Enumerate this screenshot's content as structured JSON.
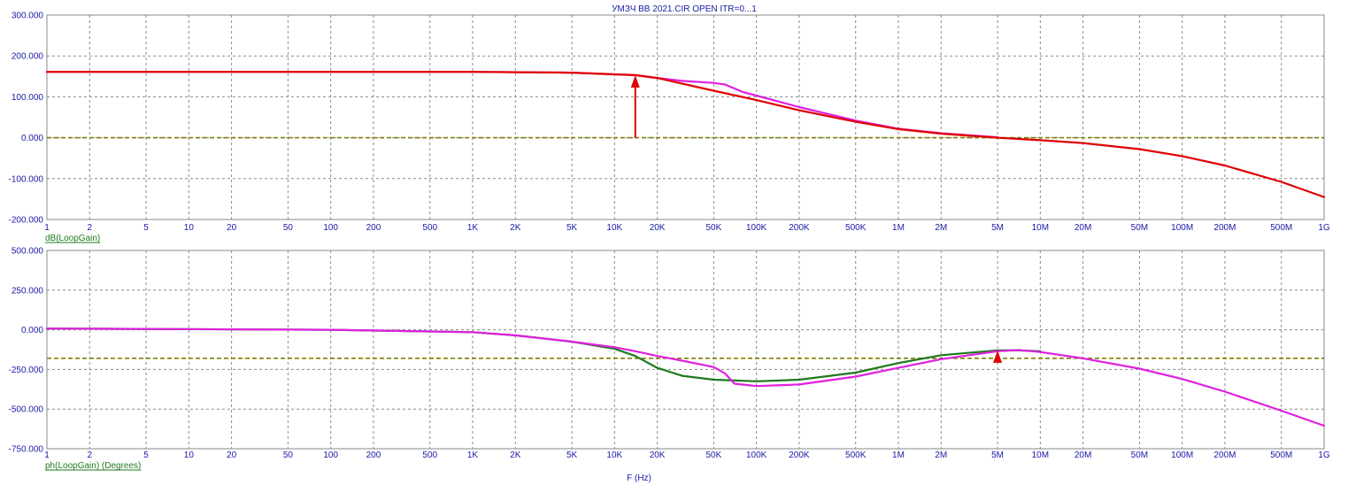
{
  "title": "УМЗЧ ВВ 2021.CIR OPEN ITR=0...1",
  "x_axis_label": "F (Hz)",
  "colors": {
    "text": "#1a1aa6",
    "expression_label": "#1e7a1e",
    "grid": "#8a8a8a",
    "reference_line": "#808000",
    "red": "#e00000",
    "green": "#1e7a1e",
    "magenta": "#e020e0"
  },
  "chart_data": [
    {
      "type": "line",
      "name": "magnitude",
      "x_scale": "log",
      "xlim": [
        1,
        1000000000
      ],
      "x_ticks": [
        {
          "v": 1,
          "label": "1"
        },
        {
          "v": 2,
          "label": "2"
        },
        {
          "v": 5,
          "label": "5"
        },
        {
          "v": 10,
          "label": "10"
        },
        {
          "v": 20,
          "label": "20"
        },
        {
          "v": 50,
          "label": "50"
        },
        {
          "v": 100,
          "label": "100"
        },
        {
          "v": 200,
          "label": "200"
        },
        {
          "v": 500,
          "label": "500"
        },
        {
          "v": 1000,
          "label": "1K"
        },
        {
          "v": 2000,
          "label": "2K"
        },
        {
          "v": 5000,
          "label": "5K"
        },
        {
          "v": 10000,
          "label": "10K"
        },
        {
          "v": 20000,
          "label": "20K"
        },
        {
          "v": 50000,
          "label": "50K"
        },
        {
          "v": 100000,
          "label": "100K"
        },
        {
          "v": 200000,
          "label": "200K"
        },
        {
          "v": 500000,
          "label": "500K"
        },
        {
          "v": 1000000,
          "label": "1M"
        },
        {
          "v": 2000000,
          "label": "2M"
        },
        {
          "v": 5000000,
          "label": "5M"
        },
        {
          "v": 10000000,
          "label": "10M"
        },
        {
          "v": 20000000,
          "label": "20M"
        },
        {
          "v": 50000000,
          "label": "50M"
        },
        {
          "v": 100000000,
          "label": "100M"
        },
        {
          "v": 200000000,
          "label": "200M"
        },
        {
          "v": 500000000,
          "label": "500M"
        },
        {
          "v": 1000000000,
          "label": "1G"
        }
      ],
      "ylim": [
        -200,
        300
      ],
      "y_ticks": [
        {
          "v": 300,
          "label": "300.000"
        },
        {
          "v": 200,
          "label": "200.000"
        },
        {
          "v": 100,
          "label": "100.000"
        },
        {
          "v": 0,
          "label": "0.000"
        },
        {
          "v": -100,
          "label": "-100.000"
        },
        {
          "v": -200,
          "label": "-200.000"
        }
      ],
      "ylabel": "dB(LoopGain)",
      "grid": true,
      "reference_line": 0,
      "series": [
        {
          "color": "#e020e0",
          "x": [
            1,
            1000,
            5000,
            14000,
            20000,
            30000,
            50000,
            60000,
            80000,
            100000,
            200000,
            500000,
            1000000,
            2000000,
            5000000
          ],
          "y": [
            161,
            161,
            159,
            153,
            146,
            139,
            134,
            130,
            112,
            103,
            75,
            42,
            22,
            11,
            1
          ]
        },
        {
          "color": "#e00000",
          "x": [
            1,
            1000,
            5000,
            14000,
            20000,
            50000,
            100000,
            200000,
            500000,
            1000000,
            2000000,
            5000000,
            10000000,
            20000000,
            50000000,
            100000000,
            200000000,
            500000000,
            1000000000
          ],
          "y": [
            161,
            161,
            159,
            153,
            146,
            115,
            92,
            67,
            39,
            21,
            10,
            0,
            -6,
            -13,
            -28,
            -45,
            -68,
            -108,
            -145
          ]
        }
      ],
      "markers": [
        {
          "x": 14000,
          "y": 0,
          "y2": 153,
          "color": "#e00000"
        }
      ]
    },
    {
      "type": "line",
      "name": "phase",
      "x_scale": "log",
      "xlim": [
        1,
        1000000000
      ],
      "x_ticks": [
        {
          "v": 1,
          "label": "1"
        },
        {
          "v": 2,
          "label": "2"
        },
        {
          "v": 5,
          "label": "5"
        },
        {
          "v": 10,
          "label": "10"
        },
        {
          "v": 20,
          "label": "20"
        },
        {
          "v": 50,
          "label": "50"
        },
        {
          "v": 100,
          "label": "100"
        },
        {
          "v": 200,
          "label": "200"
        },
        {
          "v": 500,
          "label": "500"
        },
        {
          "v": 1000,
          "label": "1K"
        },
        {
          "v": 2000,
          "label": "2K"
        },
        {
          "v": 5000,
          "label": "5K"
        },
        {
          "v": 10000,
          "label": "10K"
        },
        {
          "v": 20000,
          "label": "20K"
        },
        {
          "v": 50000,
          "label": "50K"
        },
        {
          "v": 100000,
          "label": "100K"
        },
        {
          "v": 200000,
          "label": "200K"
        },
        {
          "v": 500000,
          "label": "500K"
        },
        {
          "v": 1000000,
          "label": "1M"
        },
        {
          "v": 2000000,
          "label": "2M"
        },
        {
          "v": 5000000,
          "label": "5M"
        },
        {
          "v": 10000000,
          "label": "10M"
        },
        {
          "v": 20000000,
          "label": "20M"
        },
        {
          "v": 50000000,
          "label": "50M"
        },
        {
          "v": 100000000,
          "label": "100M"
        },
        {
          "v": 200000000,
          "label": "200M"
        },
        {
          "v": 500000000,
          "label": "500M"
        },
        {
          "v": 1000000000,
          "label": "1G"
        }
      ],
      "ylim": [
        -750,
        500
      ],
      "y_ticks": [
        {
          "v": 500,
          "label": "500.000"
        },
        {
          "v": 250,
          "label": "250.000"
        },
        {
          "v": 0,
          "label": "0.000"
        },
        {
          "v": -250,
          "label": "-250.000"
        },
        {
          "v": -500,
          "label": "-500.000"
        },
        {
          "v": -750,
          "label": "-750.000"
        }
      ],
      "ylabel": "ph(LoopGain) (Degrees)",
      "grid": true,
      "reference_line": -180,
      "series": [
        {
          "color": "#1e7a1e",
          "x": [
            1,
            100,
            1000,
            2000,
            5000,
            10000,
            14000,
            20000,
            30000,
            50000,
            100000,
            200000,
            500000,
            1000000,
            2000000,
            5000000,
            7000000,
            10000000
          ],
          "y": [
            8,
            0,
            -15,
            -35,
            -75,
            -120,
            -165,
            -240,
            -290,
            -315,
            -325,
            -315,
            -270,
            -210,
            -160,
            -130,
            -130,
            -135
          ]
        },
        {
          "color": "#e020e0",
          "x": [
            1,
            100,
            1000,
            2000,
            5000,
            10000,
            14000,
            20000,
            30000,
            50000,
            60000,
            70000,
            100000,
            200000,
            500000,
            1000000,
            2000000,
            5000000,
            7000000,
            10000000,
            20000000,
            50000000,
            100000000,
            200000000,
            500000000,
            1000000000
          ],
          "y": [
            8,
            0,
            -15,
            -35,
            -75,
            -110,
            -135,
            -165,
            -195,
            -235,
            -275,
            -340,
            -355,
            -345,
            -295,
            -240,
            -185,
            -135,
            -128,
            -140,
            -180,
            -245,
            -310,
            -390,
            -510,
            -605
          ]
        }
      ],
      "markers": [
        {
          "x": 5000000,
          "y": -180,
          "y2": -130,
          "color": "#e00000"
        }
      ]
    }
  ]
}
